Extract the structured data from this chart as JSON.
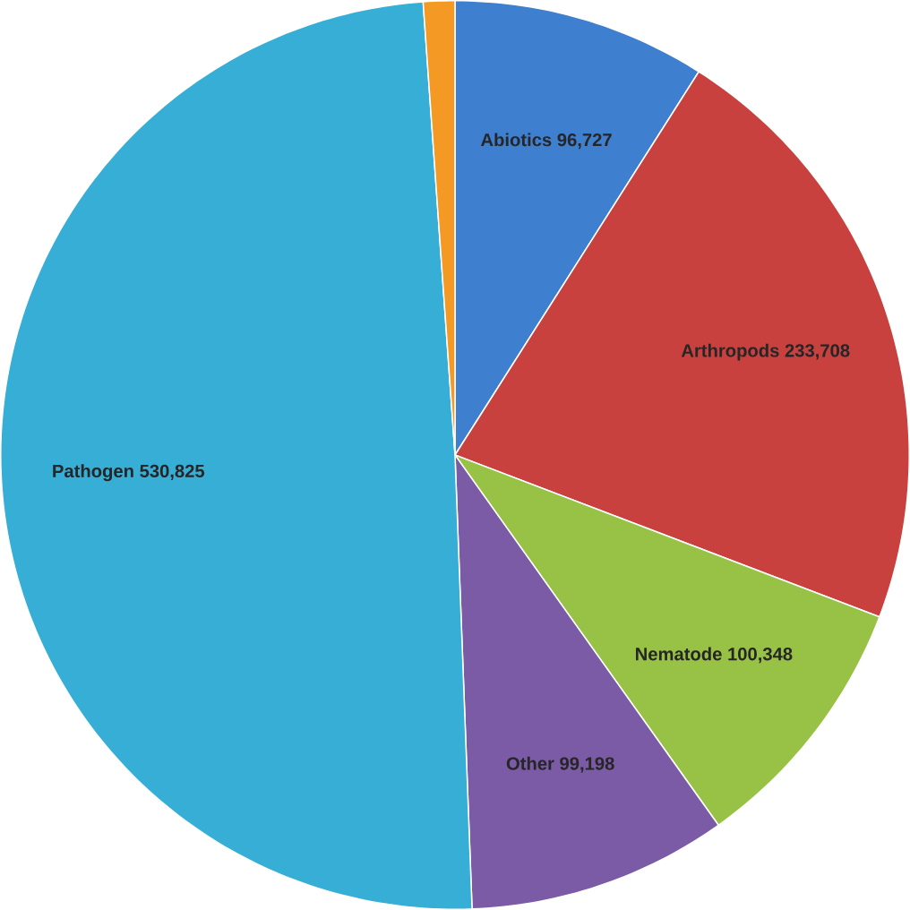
{
  "chart_data": {
    "type": "pie",
    "categories": [
      "Abiotics",
      "Arthropods",
      "Nematode",
      "Other",
      "Pathogen",
      null
    ],
    "values": [
      96727,
      233708,
      100348,
      99198,
      530825,
      12000
    ],
    "value_labels": [
      "96,727",
      "233,708",
      "100,348",
      "99,198",
      "530,825",
      null
    ],
    "colors": [
      "#3f7fcf",
      "#c9413e",
      "#98c246",
      "#7b5aa6",
      "#36aed6",
      "#f49a24"
    ]
  }
}
